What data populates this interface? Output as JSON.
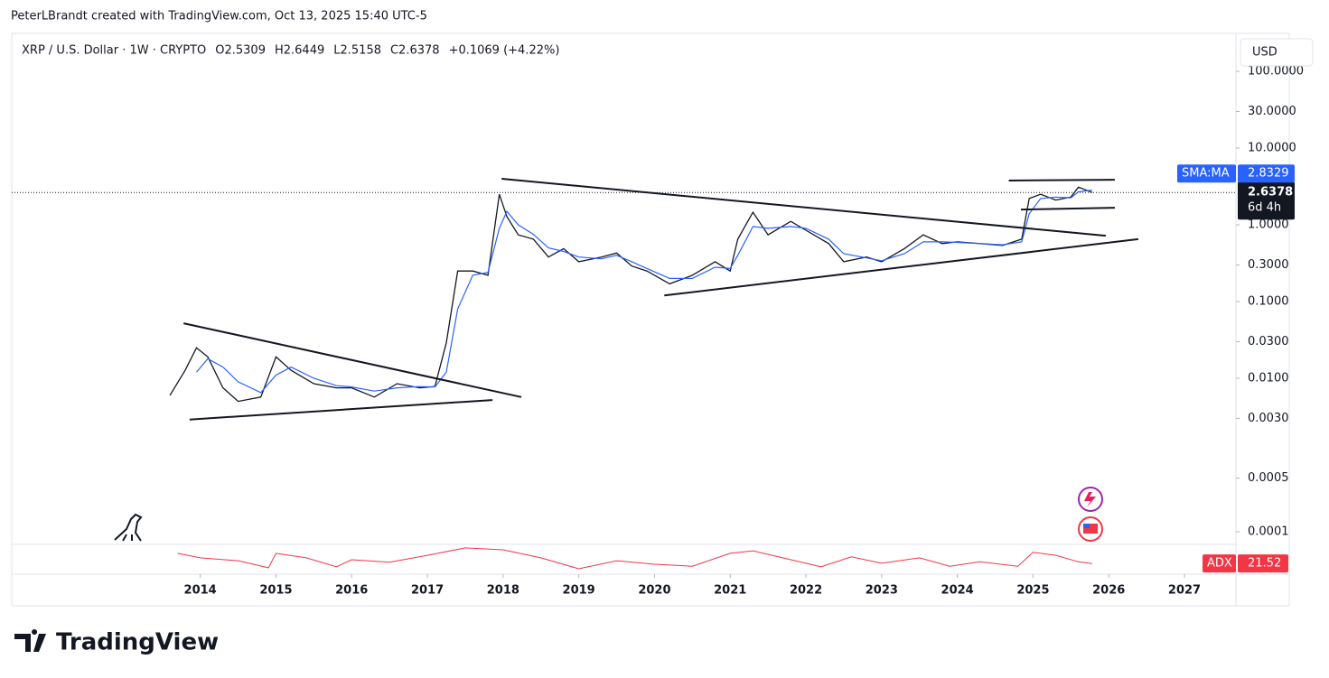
{
  "header": {
    "credit": "PeterLBrandt created with TradingView.com, Oct 13, 2025 15:40 UTC-5"
  },
  "footer": {
    "brand": "TradingView"
  },
  "chart_data": {
    "type": "line",
    "log_scale": true,
    "grid": false,
    "symbol": "XRP / U.S. Dollar · 1W · CRYPTO",
    "ohlc": [
      "O2.5309",
      "H2.6449",
      "L2.5158",
      "C2.6378"
    ],
    "change": "+0.1069 (+4.22%)",
    "currency": "USD",
    "countdown": "6d 4h",
    "x": [
      2013.6,
      2013.8,
      2013.95,
      2014.1,
      2014.3,
      2014.5,
      2014.8,
      2015.0,
      2015.2,
      2015.5,
      2015.8,
      2016.0,
      2016.3,
      2016.6,
      2016.9,
      2017.1,
      2017.25,
      2017.4,
      2017.6,
      2017.8,
      2017.95,
      2018.05,
      2018.2,
      2018.4,
      2018.6,
      2018.8,
      2019.0,
      2019.3,
      2019.5,
      2019.7,
      2019.9,
      2020.2,
      2020.5,
      2020.8,
      2021.0,
      2021.1,
      2021.3,
      2021.5,
      2021.8,
      2022.0,
      2022.3,
      2022.5,
      2022.8,
      2023.0,
      2023.3,
      2023.55,
      2023.8,
      2024.0,
      2024.3,
      2024.6,
      2024.85,
      2024.95,
      2025.1,
      2025.3,
      2025.5,
      2025.6,
      2025.78
    ],
    "series": [
      {
        "color": "#131722",
        "values": [
          0.006,
          0.0127,
          0.025,
          0.019,
          0.0075,
          0.005,
          0.0057,
          0.019,
          0.0127,
          0.0085,
          0.0075,
          0.0075,
          0.0057,
          0.0085,
          0.0075,
          0.0078,
          0.029,
          0.25,
          0.25,
          0.22,
          2.5,
          1.28,
          0.74,
          0.65,
          0.38,
          0.49,
          0.33,
          0.38,
          0.43,
          0.29,
          0.25,
          0.17,
          0.22,
          0.33,
          0.25,
          0.65,
          1.46,
          0.74,
          1.11,
          0.85,
          0.57,
          0.33,
          0.38,
          0.33,
          0.49,
          0.74,
          0.57,
          0.6,
          0.57,
          0.54,
          0.65,
          2.2,
          2.5,
          2.1,
          2.3,
          3.1,
          2.6378
        ]
      },
      {
        "name": "SMA:MA",
        "color": "#2962ff",
        "values": [
          null,
          null,
          0.012,
          0.018,
          0.014,
          0.009,
          0.0065,
          0.011,
          0.014,
          0.01,
          0.008,
          0.0077,
          0.0068,
          0.0075,
          0.0078,
          0.0077,
          0.012,
          0.08,
          0.22,
          0.24,
          0.9,
          1.5,
          1.0,
          0.75,
          0.5,
          0.45,
          0.38,
          0.36,
          0.4,
          0.33,
          0.27,
          0.2,
          0.2,
          0.28,
          0.27,
          0.4,
          0.95,
          0.9,
          0.95,
          0.9,
          0.65,
          0.42,
          0.37,
          0.34,
          0.42,
          0.6,
          0.6,
          0.59,
          0.57,
          0.55,
          0.6,
          1.4,
          2.2,
          2.3,
          2.25,
          2.7,
          2.8329
        ]
      }
    ],
    "trendlines": [
      {
        "x": [
          2013.78,
          2018.24
        ],
        "y": [
          0.052,
          0.0057
        ]
      },
      {
        "x": [
          2013.86,
          2017.86
        ],
        "y": [
          0.0029,
          0.0052
        ]
      },
      {
        "x": [
          2017.98,
          2025.96
        ],
        "y": [
          3.98,
          0.72
        ]
      },
      {
        "x": [
          2020.13,
          2026.39
        ],
        "y": [
          0.12,
          0.65
        ]
      },
      {
        "x": [
          2024.68,
          2026.08
        ],
        "y": [
          3.77,
          3.87
        ]
      },
      {
        "x": [
          2024.84,
          2026.08
        ],
        "y": [
          1.58,
          1.67
        ]
      }
    ],
    "xlim": [
      2011.51,
      2027.68
    ],
    "xticks": [
      2014,
      2015,
      2016,
      2017,
      2018,
      2019,
      2020,
      2021,
      2022,
      2023,
      2024,
      2025,
      2026,
      2027
    ],
    "ylim": [
      6.84e-05,
      288
    ],
    "yticks": [
      {
        "value": 100,
        "label": "100.0000"
      },
      {
        "value": 30,
        "label": "30.0000"
      },
      {
        "value": 10,
        "label": "10.0000"
      },
      {
        "value": 1,
        "label": "1.0000"
      },
      {
        "value": 0.3,
        "label": "0.3000"
      },
      {
        "value": 0.1,
        "label": "0.1000"
      },
      {
        "value": 0.03,
        "label": "0.0300"
      },
      {
        "value": 0.01,
        "label": "0.0100"
      },
      {
        "value": 0.003,
        "label": "0.0030"
      },
      {
        "value": 0.0005,
        "label": "0.0005"
      },
      {
        "value": 0.0001,
        "label": "0.0001"
      }
    ],
    "adx": {
      "name": "ADX",
      "color": "#f23645",
      "ylim": [
        0,
        60
      ],
      "x": [
        2013.7,
        2014.0,
        2014.5,
        2014.9,
        2015.0,
        2015.4,
        2015.8,
        2016.0,
        2016.5,
        2017.0,
        2017.5,
        2018.0,
        2018.5,
        2019.0,
        2019.5,
        2020.0,
        2020.5,
        2021.0,
        2021.3,
        2021.8,
        2022.2,
        2022.6,
        2023.0,
        2023.5,
        2023.9,
        2024.3,
        2024.8,
        2025.0,
        2025.3,
        2025.6,
        2025.78
      ],
      "values": [
        42,
        33,
        27,
        13,
        42,
        33,
        15,
        29,
        24,
        38,
        53,
        49,
        33,
        11,
        27,
        20,
        16,
        42,
        47,
        29,
        15,
        35,
        22,
        33,
        16,
        25,
        16,
        44,
        38,
        25,
        21.52
      ]
    }
  }
}
